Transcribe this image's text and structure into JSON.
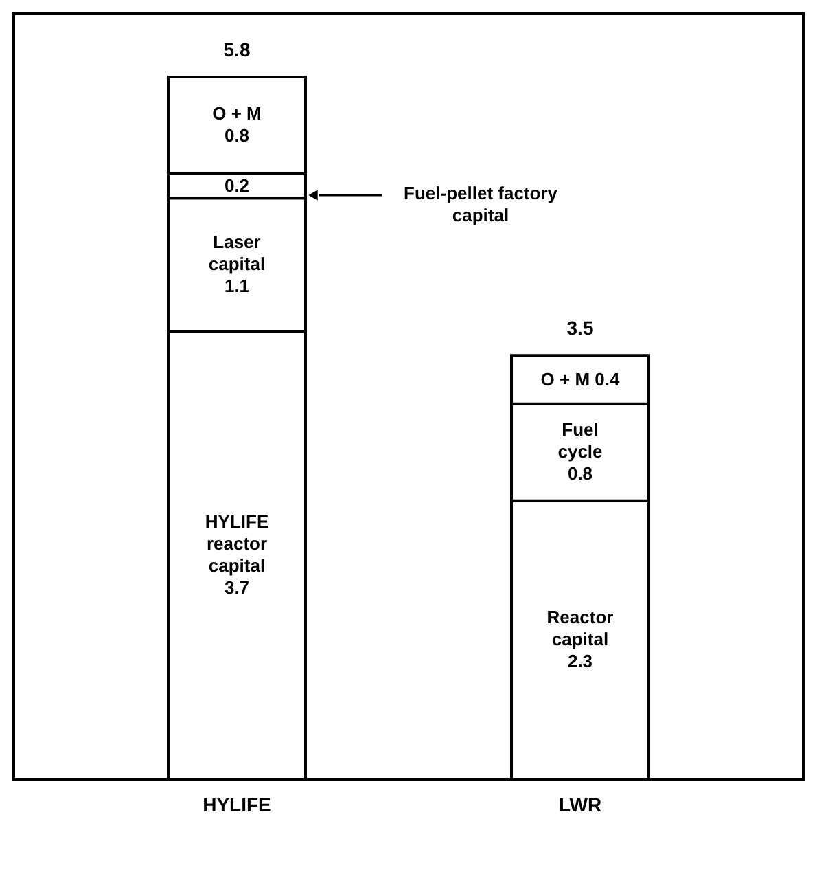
{
  "chart_data": {
    "type": "bar",
    "stacked": true,
    "categories": [
      "HYLIFE",
      "LWR"
    ],
    "series": [
      {
        "color": "#ffffff",
        "values": [
          3.7,
          2.3
        ],
        "value_labels": [
          "HYLIFE\nreactor\ncapital\n3.7",
          "Reactor\ncapital\n2.3"
        ]
      },
      {
        "color": "#ffffff",
        "values": [
          1.1,
          0.8
        ],
        "value_labels": [
          "Laser\ncapital\n1.1",
          "Fuel\ncycle\n0.8"
        ]
      },
      {
        "color": "#ffffff",
        "values": [
          0.2,
          null
        ],
        "value_labels": [
          "0.2",
          null
        ]
      },
      {
        "color": "#ffffff",
        "values": [
          0.8,
          0.4
        ],
        "value_labels": [
          "O + M\n0.8",
          "O + M   0.4"
        ]
      }
    ],
    "totals": [
      "5.8",
      "3.5"
    ],
    "annotations": [
      "Fuel-pellet factory\ncapital"
    ],
    "tick_labels": "x",
    "grid": false
  }
}
